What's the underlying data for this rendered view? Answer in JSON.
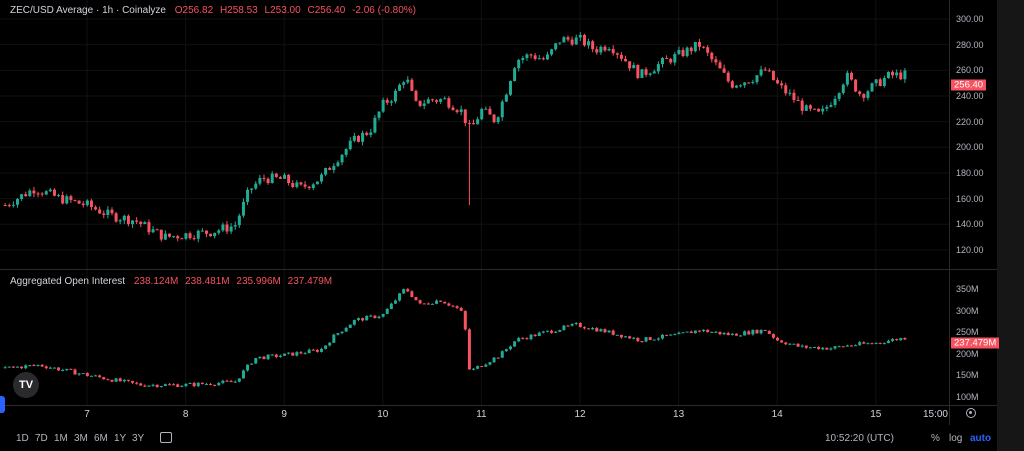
{
  "header": {
    "title": "ZEC/USD Average · 1h · Coinalyze",
    "open": "O256.82",
    "high": "H258.53",
    "low": "L253.00",
    "close": "C256.40",
    "change": "-2.06 (-0.80%)"
  },
  "oi_header": {
    "title": "Aggregated Open Interest",
    "values": [
      "238.124M",
      "238.481M",
      "235.996M",
      "237.479M"
    ]
  },
  "price_axis": {
    "ticks": [
      "300.00",
      "280.00",
      "260.00",
      "240.00",
      "220.00",
      "200.00",
      "180.00",
      "160.00",
      "140.00",
      "120.00"
    ],
    "last_price": "256.40"
  },
  "oi_axis": {
    "ticks": [
      "350M",
      "300M",
      "250M",
      "200M",
      "150M",
      "100M"
    ],
    "last_value": "237.479M"
  },
  "time_axis": {
    "days": [
      "7",
      "8",
      "9",
      "10",
      "11",
      "12",
      "13",
      "14",
      "15"
    ],
    "end_label": "15:00"
  },
  "toolbar": {
    "ranges": [
      "1D",
      "7D",
      "1M",
      "3M",
      "6M",
      "1Y",
      "3Y"
    ],
    "clock": "10:52:20 (UTC)",
    "percent": "%",
    "log": "log",
    "auto": "auto"
  },
  "logo": "TV",
  "colors": {
    "up": "#22ab94",
    "down": "#f7525f",
    "accent": "#2962ff",
    "background": "#000000"
  },
  "chart_data": [
    {
      "type": "candlestick",
      "title": "ZEC/USD Average · 1h · Coinalyze",
      "interval": "1h",
      "ylim": [
        110,
        310
      ],
      "x_unit": "day of month",
      "close_keypoints": {
        "t": [
          6.17,
          6.47,
          6.73,
          7,
          7.23,
          7.49,
          7.64,
          7.79,
          8,
          8.25,
          8.5,
          8.65,
          8.78,
          9,
          9.16,
          9.37,
          9.52,
          9.72,
          9.87,
          10,
          10.12,
          10.23,
          10.33,
          10.48,
          10.63,
          10.79,
          10.89,
          11,
          11.14,
          11.24,
          11.35,
          11.5,
          11.65,
          11.8,
          12,
          12.15,
          12.3,
          12.46,
          12.61,
          12.81,
          13,
          13.21,
          13.37,
          13.53,
          13.73,
          13.88,
          14,
          14.18,
          14.29,
          14.44,
          14.59,
          14.7,
          14.85,
          15,
          15.14,
          15.3
        ],
        "close": [
          155,
          168,
          160,
          155,
          147,
          143,
          136,
          130,
          132,
          134,
          139,
          167,
          176,
          175,
          168,
          176,
          190,
          206,
          213,
          233,
          241,
          256,
          233,
          237,
          237,
          229,
          213,
          229,
          221,
          241,
          268,
          272,
          268,
          284,
          284,
          276,
          280,
          268,
          256,
          265,
          272,
          280,
          265,
          249,
          253,
          260,
          249,
          237,
          229,
          225,
          241,
          256,
          241,
          249,
          256,
          256.4
        ]
      },
      "notable_wick_low": {
        "t": 10.89,
        "value": 155
      },
      "last": {
        "open": 256.82,
        "high": 258.53,
        "low": 253.0,
        "close": 256.4
      }
    },
    {
      "type": "candlestick",
      "title": "Aggregated Open Interest",
      "unit": "M",
      "ylim": [
        90,
        370
      ],
      "close_keypoints": {
        "t": [
          6.17,
          6.52,
          7,
          7.54,
          8,
          8.5,
          8.7,
          9,
          9.37,
          9.52,
          9.72,
          10,
          10.23,
          10.38,
          10.58,
          10.79,
          10.86,
          10.88,
          11,
          11.19,
          11.35,
          11.65,
          11.96,
          12.2,
          12.61,
          13,
          13.21,
          13.53,
          13.88,
          14,
          14.23,
          14.54,
          14.74,
          15,
          15.3
        ],
        "close": [
          167,
          174,
          151,
          128,
          128,
          135,
          190,
          197,
          209,
          244,
          278,
          290,
          352,
          313,
          325,
          301,
          232,
          158,
          174,
          197,
          232,
          250,
          267,
          255,
          232,
          244,
          255,
          244,
          255,
          232,
          216,
          213,
          220,
          225,
          237.479
        ]
      }
    }
  ]
}
